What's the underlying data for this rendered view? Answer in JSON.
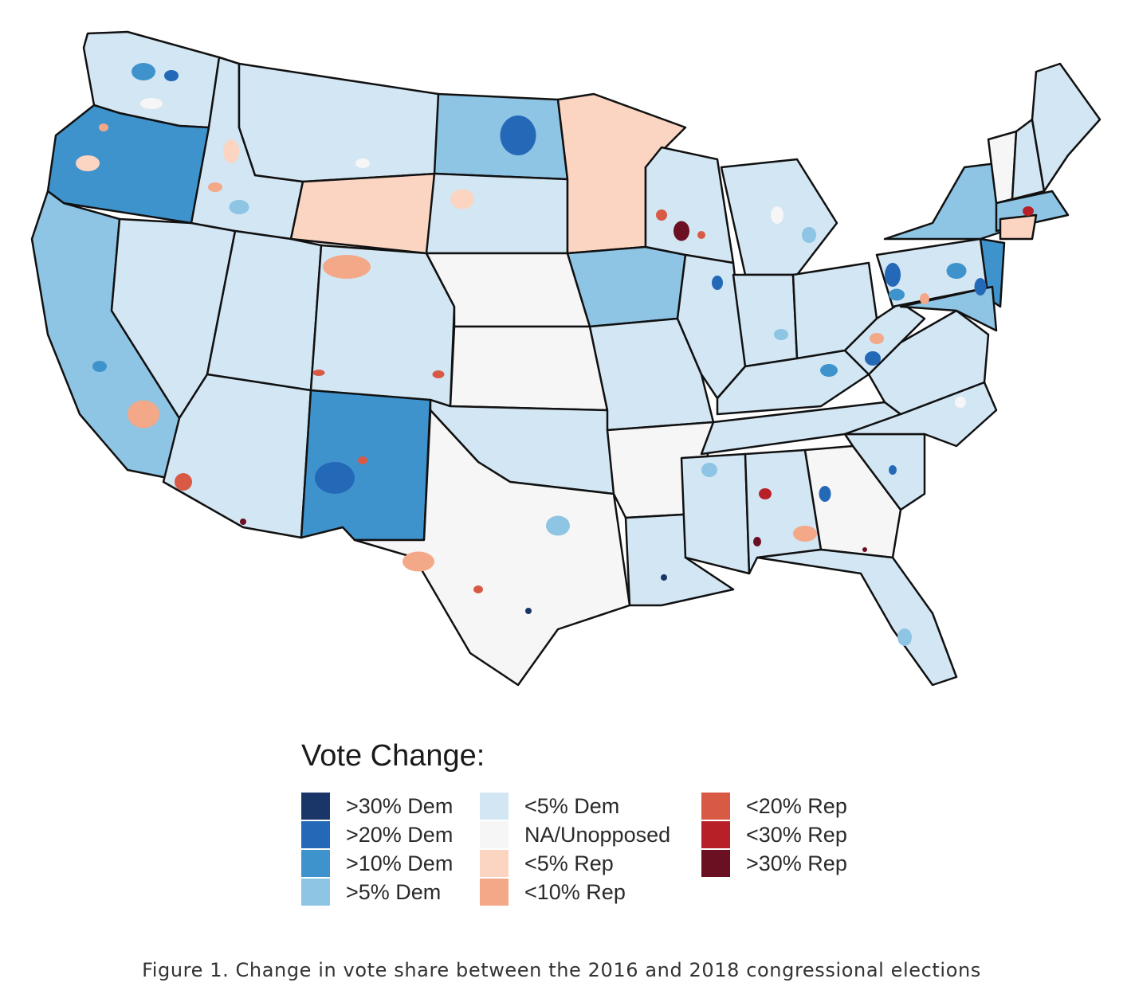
{
  "legend": {
    "title": "Vote Change:",
    "items": [
      {
        "label": ">30% Dem",
        "color": "#1a3668"
      },
      {
        "label": ">20% Dem",
        "color": "#2468b8"
      },
      {
        "label": ">10% Dem",
        "color": "#3f93cc"
      },
      {
        "label": ">5% Dem",
        "color": "#8ec4e4"
      },
      {
        "label": "<5% Dem",
        "color": "#d2e6f4"
      },
      {
        "label": "NA/Unopposed",
        "color": "#f6f6f6"
      },
      {
        "label": "<5% Rep",
        "color": "#fbd5c2"
      },
      {
        "label": "<10% Rep",
        "color": "#f3a888"
      },
      {
        "label": "<20% Rep",
        "color": "#d85a45"
      },
      {
        "label": "<30% Rep",
        "color": "#b82028"
      },
      {
        "label": ">30% Rep",
        "color": "#6b0f22"
      }
    ]
  },
  "caption": "Figure 1. Change in vote share between the 2016 and 2018 congressional elections",
  "regions": [
    {
      "name": "WA",
      "category": "<5% Dem"
    },
    {
      "name": "OR",
      "category": ">10% Dem"
    },
    {
      "name": "CA",
      "category": ">5% Dem"
    },
    {
      "name": "NV",
      "category": "<5% Dem"
    },
    {
      "name": "ID",
      "category": "<5% Dem"
    },
    {
      "name": "MT",
      "category": "<5% Dem"
    },
    {
      "name": "WY",
      "category": "<5% Rep"
    },
    {
      "name": "UT",
      "category": "<5% Dem"
    },
    {
      "name": "AZ",
      "category": "<5% Dem"
    },
    {
      "name": "CO",
      "category": "<5% Dem"
    },
    {
      "name": "NM",
      "category": ">10% Dem"
    },
    {
      "name": "ND",
      "category": ">5% Dem"
    },
    {
      "name": "SD",
      "category": "<5% Dem"
    },
    {
      "name": "NE",
      "category": "NA/Unopposed"
    },
    {
      "name": "KS",
      "category": "NA/Unopposed"
    },
    {
      "name": "OK",
      "category": "<5% Dem"
    },
    {
      "name": "TX",
      "category": "NA/Unopposed"
    },
    {
      "name": "MN",
      "category": "<5% Rep"
    },
    {
      "name": "IA",
      "category": ">5% Dem"
    },
    {
      "name": "MO",
      "category": "<5% Dem"
    },
    {
      "name": "AR",
      "category": "NA/Unopposed"
    },
    {
      "name": "LA",
      "category": "<5% Dem"
    },
    {
      "name": "WI",
      "category": "<5% Dem"
    },
    {
      "name": "IL",
      "category": "<5% Dem"
    },
    {
      "name": "MI",
      "category": "<5% Dem"
    },
    {
      "name": "IN",
      "category": "<5% Dem"
    },
    {
      "name": "OH",
      "category": "<5% Dem"
    },
    {
      "name": "KY",
      "category": "<5% Dem"
    },
    {
      "name": "TN",
      "category": "<5% Dem"
    },
    {
      "name": "MS",
      "category": "<5% Dem"
    },
    {
      "name": "AL",
      "category": "<5% Dem"
    },
    {
      "name": "GA",
      "category": "NA/Unopposed"
    },
    {
      "name": "FL",
      "category": "<5% Dem"
    },
    {
      "name": "SC",
      "category": "<5% Dem"
    },
    {
      "name": "NC",
      "category": "<5% Dem"
    },
    {
      "name": "VA",
      "category": "<5% Dem"
    },
    {
      "name": "WV",
      "category": "<5% Dem"
    },
    {
      "name": "PA",
      "category": "<5% Dem"
    },
    {
      "name": "NY",
      "category": ">5% Dem"
    },
    {
      "name": "VT",
      "category": "NA/Unopposed"
    },
    {
      "name": "NH",
      "category": "<5% Dem"
    },
    {
      "name": "ME",
      "category": "<5% Dem"
    },
    {
      "name": "MA",
      "category": ">5% Dem"
    },
    {
      "name": "CT",
      "category": "<5% Rep"
    },
    {
      "name": "NJ",
      "category": ">10% Dem"
    },
    {
      "name": "MD",
      "category": ">5% Dem"
    }
  ]
}
